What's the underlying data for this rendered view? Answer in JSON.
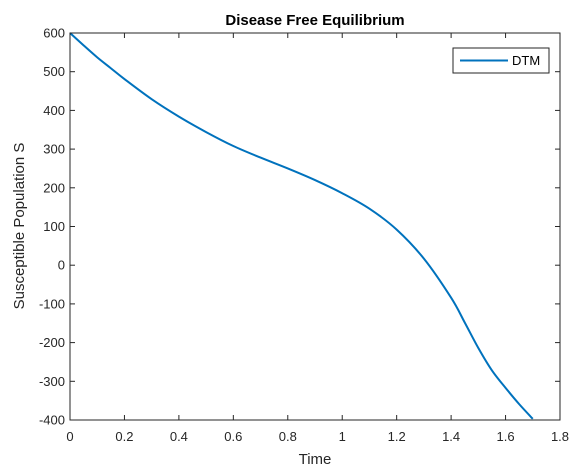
{
  "chart_data": {
    "type": "line",
    "title": "Disease Free Equilibrium",
    "xlabel": "Time",
    "ylabel": "Susceptible Population S",
    "xlim": [
      0,
      1.8
    ],
    "ylim": [
      -400,
      600
    ],
    "xticks": [
      0,
      0.2,
      0.4,
      0.6,
      0.8,
      1,
      1.2,
      1.4,
      1.6,
      1.8
    ],
    "xtick_labels": [
      "0",
      "0.2",
      "0.4",
      "0.6",
      "0.8",
      "1",
      "1.2",
      "1.4",
      "1.6",
      "1.8"
    ],
    "yticks": [
      -400,
      -300,
      -200,
      -100,
      0,
      100,
      200,
      300,
      400,
      500,
      600
    ],
    "ytick_labels": [
      "-400",
      "-300",
      "-200",
      "-100",
      "0",
      "100",
      "200",
      "300",
      "400",
      "500",
      "600"
    ],
    "grid": false,
    "legend_position": "top-right",
    "series": [
      {
        "name": "DTM",
        "color": "#0072BD",
        "x": [
          0,
          0.05,
          0.1,
          0.15,
          0.2,
          0.3,
          0.4,
          0.5,
          0.6,
          0.7,
          0.8,
          0.9,
          1.0,
          1.1,
          1.2,
          1.3,
          1.4,
          1.45,
          1.5,
          1.55,
          1.6,
          1.65,
          1.7
        ],
        "y": [
          600,
          568,
          537,
          509,
          481,
          429,
          384,
          344,
          308,
          278,
          250,
          220,
          186,
          146,
          92,
          17,
          -84,
          -148,
          -214,
          -272,
          -317,
          -359,
          -397
        ]
      }
    ]
  }
}
